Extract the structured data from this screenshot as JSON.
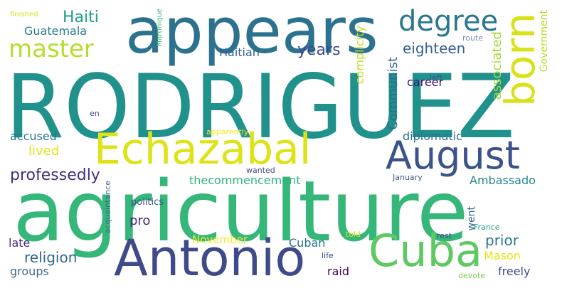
{
  "words": [
    {
      "key": "rodriguez",
      "text": "RODRIGUEZ",
      "color": "#21918c"
    },
    {
      "key": "agriculture",
      "text": "agriculture",
      "color": "#35b779"
    },
    {
      "key": "appears",
      "text": "appears",
      "color": "#2c728e"
    },
    {
      "key": "echazabal",
      "text": "Echazabal",
      "color": "#dde318"
    },
    {
      "key": "august",
      "text": "August",
      "color": "#3b528b"
    },
    {
      "key": "antonio",
      "text": "Antonio",
      "color": "#3e4a89"
    },
    {
      "key": "cuba",
      "text": "Cuba",
      "color": "#5ec962"
    },
    {
      "key": "born",
      "text": "born",
      "color": "#d8e219"
    },
    {
      "key": "master",
      "text": "master",
      "color": "#b5de2b"
    },
    {
      "key": "degree",
      "text": "degree",
      "color": "#2a788e"
    },
    {
      "key": "haiti",
      "text": "Haiti",
      "color": "#1f9e89"
    },
    {
      "key": "guatemala",
      "text": "Guatemala",
      "color": "#287c8e"
    },
    {
      "key": "haitian",
      "text": "Haitian",
      "color": "#33638d"
    },
    {
      "key": "years",
      "text": "years",
      "color": "#3e4c8a"
    },
    {
      "key": "eighteen",
      "text": "eighteen",
      "color": "#355f8d"
    },
    {
      "key": "communist",
      "text": "Communist",
      "color": "#31688e"
    },
    {
      "key": "complicity",
      "text": "complicity",
      "color": "#c2df23"
    },
    {
      "key": "career",
      "text": "career",
      "color": "#3b0f70"
    },
    {
      "key": "associated",
      "text": "associated",
      "color": "#a0da39"
    },
    {
      "key": "government",
      "text": "Government",
      "color": "#b5de2b"
    },
    {
      "key": "route",
      "text": "route",
      "color": "#7b8cb0"
    },
    {
      "key": "left",
      "text": "left",
      "color": "#3b528b"
    },
    {
      "key": "martinique",
      "text": "Martinique",
      "color": "#3aba76"
    },
    {
      "key": "finished",
      "text": "finished",
      "color": "#d8e219"
    },
    {
      "key": "en",
      "text": "en",
      "color": "#3e4989"
    },
    {
      "key": "accused",
      "text": "accused",
      "color": "#2a788e"
    },
    {
      "key": "lived",
      "text": "lived",
      "color": "#dde318"
    },
    {
      "key": "professedly",
      "text": "professedly",
      "color": "#472d7b"
    },
    {
      "key": "apparently",
      "text": "apparently",
      "color": "#fde725"
    },
    {
      "key": "diplomatic",
      "text": "diplomatic",
      "color": "#2c728e"
    },
    {
      "key": "thecommencement",
      "text": "thecommencement",
      "color": "#2fb47c"
    },
    {
      "key": "wanted",
      "text": "wanted",
      "color": "#3e4a89"
    },
    {
      "key": "january",
      "text": "January",
      "color": "#3e5a8c"
    },
    {
      "key": "ambassado",
      "text": "Ambassado",
      "color": "#25838e"
    },
    {
      "key": "politics",
      "text": "politics",
      "color": "#3b528b"
    },
    {
      "key": "acquaintance",
      "text": "acquaintance",
      "color": "#3e6a8e"
    },
    {
      "key": "pro",
      "text": "pro",
      "color": "#482878"
    },
    {
      "key": "went",
      "text": "went",
      "color": "#31688e"
    },
    {
      "key": "france",
      "text": "France",
      "color": "#1f9e89"
    },
    {
      "key": "prior",
      "text": "prior",
      "color": "#2a788e"
    },
    {
      "key": "november",
      "text": "November",
      "color": "#fde725"
    },
    {
      "key": "cuban",
      "text": "Cuban",
      "color": "#2c728e"
    },
    {
      "key": "told",
      "text": "told",
      "color": "#d8e219"
    },
    {
      "key": "rest",
      "text": "rest",
      "color": "#414487"
    },
    {
      "key": "late",
      "text": "late",
      "color": "#472d7b"
    },
    {
      "key": "religion",
      "text": "religion",
      "color": "#31688e"
    },
    {
      "key": "mason",
      "text": "Mason",
      "color": "#e5e419"
    },
    {
      "key": "life",
      "text": "life",
      "color": "#3e4a89"
    },
    {
      "key": "groups",
      "text": "groups",
      "color": "#3e6a8e"
    },
    {
      "key": "raid",
      "text": "raid",
      "color": "#440154"
    },
    {
      "key": "freely",
      "text": "freely",
      "color": "#3e4c8a"
    },
    {
      "key": "devote",
      "text": "devote",
      "color": "#7ad151"
    }
  ]
}
